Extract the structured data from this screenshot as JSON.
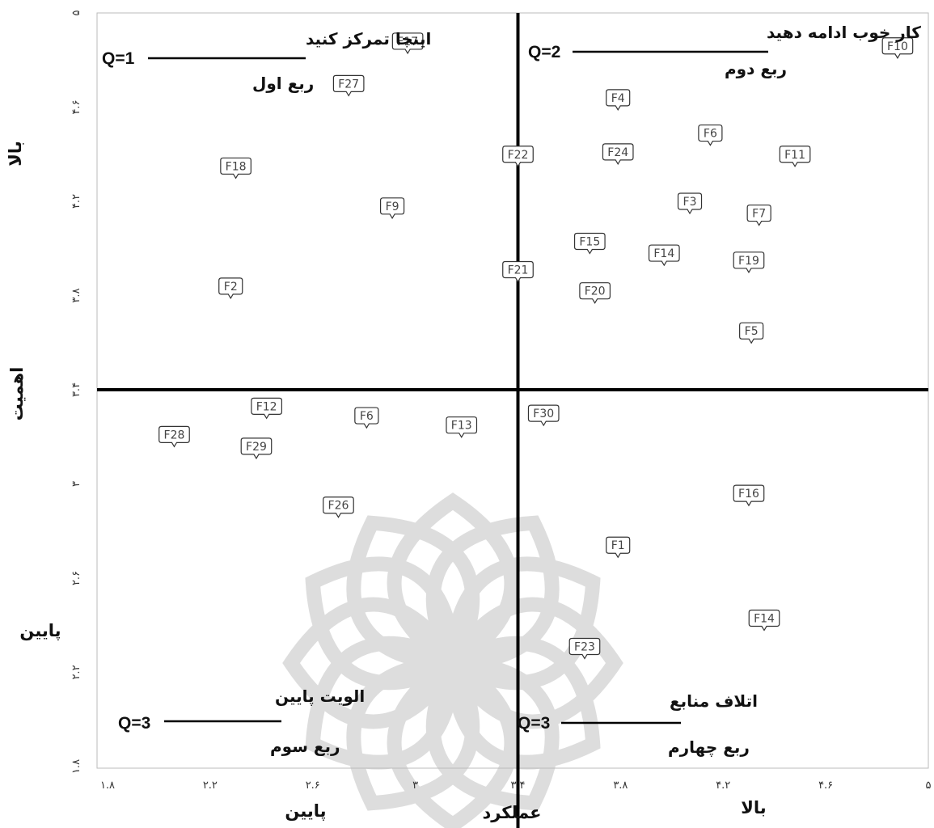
{
  "chart_data": {
    "type": "scatter",
    "xlabel": "عملکرد",
    "ylabel": "اهمیت",
    "x_low_label": "پایین",
    "x_high_label": "بالا",
    "y_low_label": "پایین",
    "y_high_label": "بالا",
    "xlim": [
      1.8,
      5
    ],
    "ylim": [
      1.8,
      5
    ],
    "x_tick_labels": [
      "۱.۸",
      "۲.۲",
      "۲.۶",
      "۳",
      "۳.۴",
      "۳.۸",
      "۴.۲",
      "۴.۶",
      "۵"
    ],
    "y_tick_labels": [
      "۱.۸",
      "۲.۲",
      "۲.۶",
      "۳",
      "۳.۴",
      "۳.۸",
      "۴.۲",
      "۴.۶",
      "۵"
    ],
    "divider": {
      "x": 3.4,
      "y": 3.4
    },
    "quadrants": [
      {
        "code": "Q=1",
        "title": "اینجا تمرکز کنید",
        "subtitle": "ربع اول"
      },
      {
        "code": "Q=2",
        "title": "کار خوب ادامه دهید",
        "subtitle": "ربع دوم"
      },
      {
        "code": "Q=3",
        "title": "الویت پایین",
        "subtitle": "ربع سوم"
      },
      {
        "code": "Q=3",
        "title": "اتلاف منابع",
        "subtitle": "ربع چهارم"
      }
    ],
    "points": [
      {
        "label": "F17",
        "x": 2.97,
        "y": 4.88
      },
      {
        "label": "F10",
        "x": 4.88,
        "y": 4.86
      },
      {
        "label": "F27",
        "x": 2.74,
        "y": 4.7
      },
      {
        "label": "F4",
        "x": 3.79,
        "y": 4.64
      },
      {
        "label": "F6",
        "x": 4.15,
        "y": 4.49
      },
      {
        "label": "F22",
        "x": 3.4,
        "y": 4.4
      },
      {
        "label": "F24",
        "x": 3.79,
        "y": 4.41
      },
      {
        "label": "F11",
        "x": 4.48,
        "y": 4.4
      },
      {
        "label": "F18",
        "x": 2.3,
        "y": 4.35
      },
      {
        "label": "F9",
        "x": 2.91,
        "y": 4.18
      },
      {
        "label": "F3",
        "x": 4.07,
        "y": 4.2
      },
      {
        "label": "F7",
        "x": 4.34,
        "y": 4.15
      },
      {
        "label": "F15",
        "x": 3.68,
        "y": 4.03
      },
      {
        "label": "F14",
        "x": 3.97,
        "y": 3.98
      },
      {
        "label": "F19",
        "x": 4.3,
        "y": 3.95
      },
      {
        "label": "F21",
        "x": 3.4,
        "y": 3.91
      },
      {
        "label": "F2",
        "x": 2.28,
        "y": 3.84
      },
      {
        "label": "F20",
        "x": 3.7,
        "y": 3.82
      },
      {
        "label": "F5",
        "x": 4.31,
        "y": 3.65
      },
      {
        "label": "F12",
        "x": 2.42,
        "y": 3.33
      },
      {
        "label": "F6",
        "x": 2.81,
        "y": 3.29
      },
      {
        "label": "F30",
        "x": 3.5,
        "y": 3.3
      },
      {
        "label": "F13",
        "x": 3.18,
        "y": 3.25
      },
      {
        "label": "F28",
        "x": 2.06,
        "y": 3.21
      },
      {
        "label": "F29",
        "x": 2.38,
        "y": 3.16
      },
      {
        "label": "F16",
        "x": 4.3,
        "y": 2.96
      },
      {
        "label": "F26",
        "x": 2.7,
        "y": 2.91
      },
      {
        "label": "F1",
        "x": 3.79,
        "y": 2.74
      },
      {
        "label": "F14",
        "x": 4.36,
        "y": 2.43
      },
      {
        "label": "F23",
        "x": 3.66,
        "y": 2.31
      }
    ]
  }
}
